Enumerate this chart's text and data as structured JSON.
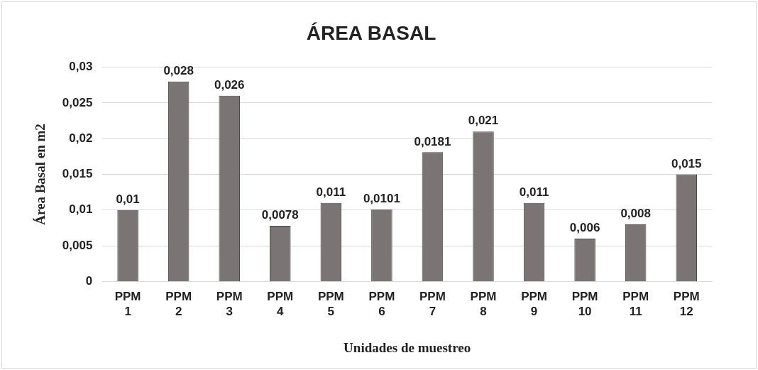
{
  "chart_data": {
    "type": "bar",
    "title": "ÁREA BASAL",
    "xlabel": "Unidades de muestreo",
    "ylabel": "Área Basal en m2",
    "categories": [
      "PPM 1",
      "PPM 2",
      "PPM 3",
      "PPM 4",
      "PPM 5",
      "PPM 6",
      "PPM 7",
      "PPM 8",
      "PPM 9",
      "PPM 10",
      "PPM 11",
      "PPM 12"
    ],
    "values": [
      0.01,
      0.028,
      0.026,
      0.0078,
      0.011,
      0.0101,
      0.0181,
      0.021,
      0.011,
      0.006,
      0.008,
      0.015
    ],
    "value_labels": [
      "0,01",
      "0,028",
      "0,026",
      "0,0078",
      "0,011",
      "0,0101",
      "0,0181",
      "0,021",
      "0,011",
      "0,006",
      "0,008",
      "0,015"
    ],
    "color": "#7a7574",
    "ylim": [
      0,
      0.03
    ],
    "yticks": [
      {
        "value": 0,
        "label": "0"
      },
      {
        "value": 0.005,
        "label": "0,005"
      },
      {
        "value": 0.01,
        "label": "0,01"
      },
      {
        "value": 0.015,
        "label": "0,015"
      },
      {
        "value": 0.02,
        "label": "0,02"
      },
      {
        "value": 0.025,
        "label": "0,025"
      },
      {
        "value": 0.03,
        "label": "0,03"
      }
    ],
    "grid": "y",
    "legend": false
  }
}
